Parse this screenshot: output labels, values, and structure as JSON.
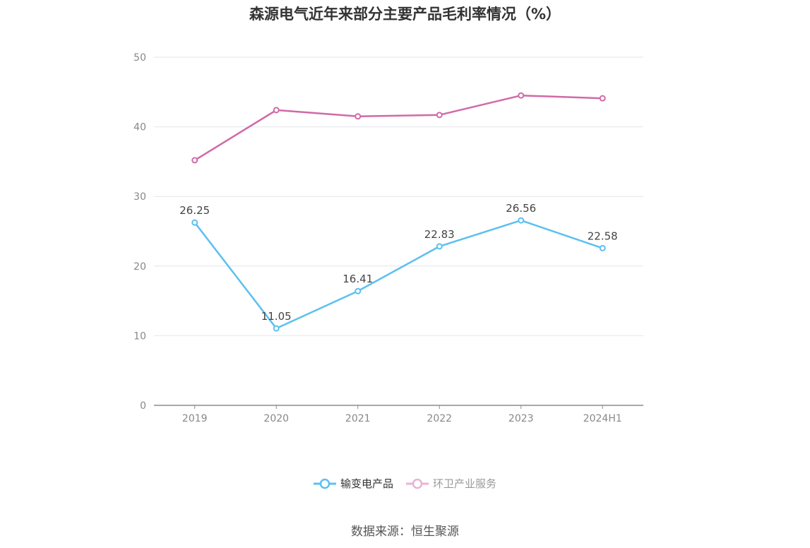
{
  "chart_data": {
    "type": "line",
    "title": "森源电气近年来部分主要产品毛利率情况（%）",
    "categories": [
      "2019",
      "2020",
      "2021",
      "2022",
      "2023",
      "2024H1"
    ],
    "ylim": [
      0,
      50
    ],
    "yticks": [
      "0",
      "10",
      "20",
      "30",
      "40",
      "50"
    ],
    "grid": true,
    "legend_position": "bottom",
    "series": [
      {
        "name": "输变电产品",
        "values": [
          26.25,
          11.05,
          16.41,
          22.83,
          26.56,
          22.58
        ],
        "labels": [
          "26.25",
          "11.05",
          "16.41",
          "22.83",
          "26.56",
          "22.58"
        ],
        "color": "#5bc0f0",
        "show_labels": true
      },
      {
        "name": "环卫产业服务",
        "values": [
          35.2,
          42.4,
          41.5,
          41.7,
          44.5,
          44.1
        ],
        "color": "#d06aa8",
        "show_labels": false
      }
    ]
  },
  "legend": {
    "items": [
      "输变电产品",
      "环卫产业服务"
    ]
  },
  "source": "数据来源：恒生聚源"
}
